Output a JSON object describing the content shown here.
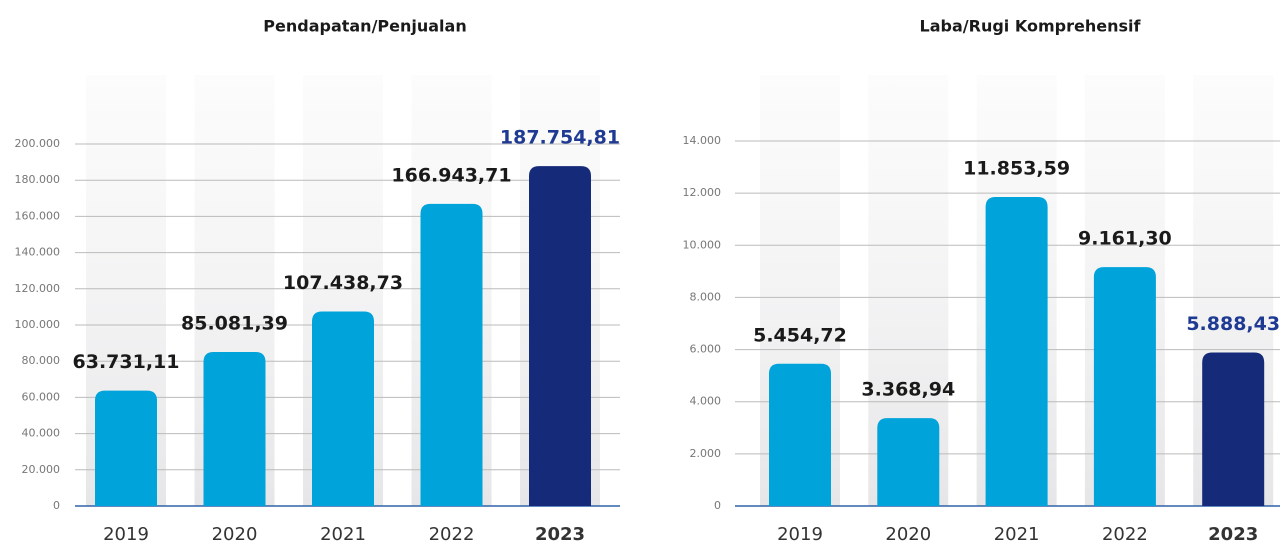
{
  "chart_data": [
    {
      "type": "bar",
      "title": "Pendapatan/Penjualan",
      "categories": [
        "2019",
        "2020",
        "2021",
        "2022",
        "2023"
      ],
      "values": [
        63731.11,
        85081.39,
        107438.73,
        166943.71,
        187754.81
      ],
      "value_labels": [
        "63.731,11",
        "85.081,39",
        "107.438,73",
        "166.943,71",
        "187.754,81"
      ],
      "colors": [
        "#00a3da",
        "#00a3da",
        "#00a3da",
        "#00a3da",
        "#152a78"
      ],
      "value_label_colors": [
        "#1a1a1a",
        "#1a1a1a",
        "#1a1a1a",
        "#1a1a1a",
        "#1f3a93"
      ],
      "category_weights": [
        "normal",
        "normal",
        "normal",
        "normal",
        "bold"
      ],
      "ylim": [
        0,
        200000
      ],
      "yticks": [
        0,
        {
          "value": 20000,
          "label": "20.000"
        },
        {
          "value": 40000,
          "label": "40.000"
        },
        {
          "value": 60000,
          "label": "60.000"
        },
        {
          "value": 80000,
          "label": "80.000"
        },
        {
          "value": 100000,
          "label": "100.000"
        },
        {
          "value": 120000,
          "label": "120.000"
        },
        {
          "value": 140000,
          "label": "140.000"
        },
        {
          "value": 160000,
          "label": "160.000"
        },
        {
          "value": 180000,
          "label": "180.000"
        },
        {
          "value": 200000,
          "label": "200.000"
        }
      ],
      "grid": true
    },
    {
      "type": "bar",
      "title": "Laba/Rugi Komprehensif",
      "categories": [
        "2019",
        "2020",
        "2021",
        "2022",
        "2023"
      ],
      "values": [
        5454.72,
        3368.94,
        11853.59,
        9161.3,
        5888.43
      ],
      "value_labels": [
        "5.454,72",
        "3.368,94",
        "11.853,59",
        "9.161,30",
        "5.888,43"
      ],
      "colors": [
        "#00a3da",
        "#00a3da",
        "#00a3da",
        "#00a3da",
        "#152a78"
      ],
      "value_label_colors": [
        "#1a1a1a",
        "#1a1a1a",
        "#1a1a1a",
        "#1a1a1a",
        "#1f3a93"
      ],
      "category_weights": [
        "normal",
        "normal",
        "normal",
        "normal",
        "bold"
      ],
      "ylim": [
        0,
        14000
      ],
      "yticks": [
        0,
        {
          "value": 2000,
          "label": "2.000"
        },
        {
          "value": 4000,
          "label": "4.000"
        },
        {
          "value": 6000,
          "label": "6.000"
        },
        {
          "value": 8000,
          "label": "8.000"
        },
        {
          "value": 10000,
          "label": "10.000"
        },
        {
          "value": 12000,
          "label": "12.000"
        },
        {
          "value": 14000,
          "label": "14.000"
        }
      ],
      "grid": true
    }
  ]
}
